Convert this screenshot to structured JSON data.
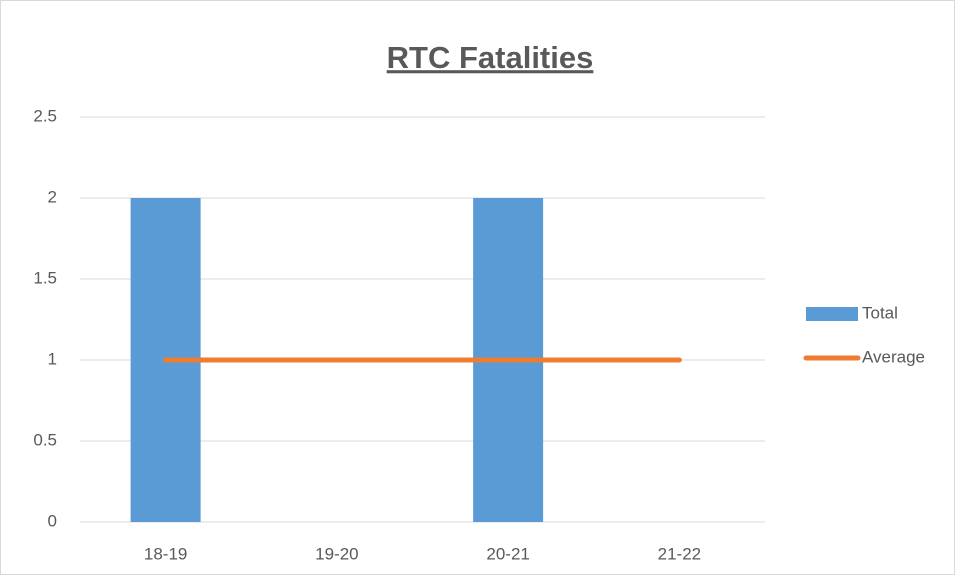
{
  "chart_data": {
    "type": "combo",
    "title": "RTC Fatalities",
    "categories": [
      "18-19",
      "19-20",
      "20-21",
      "21-22"
    ],
    "series": [
      {
        "name": "Total",
        "type": "bar",
        "color": "#5b9bd5",
        "values": [
          2,
          0,
          2,
          0
        ]
      },
      {
        "name": "Average",
        "type": "line",
        "color": "#ed7d31",
        "values": [
          1,
          1,
          1,
          1
        ]
      }
    ],
    "ylim": [
      0,
      2.5
    ],
    "yticks": [
      0,
      0.5,
      1,
      1.5,
      2,
      2.5
    ],
    "grid": true,
    "legend": "right"
  }
}
